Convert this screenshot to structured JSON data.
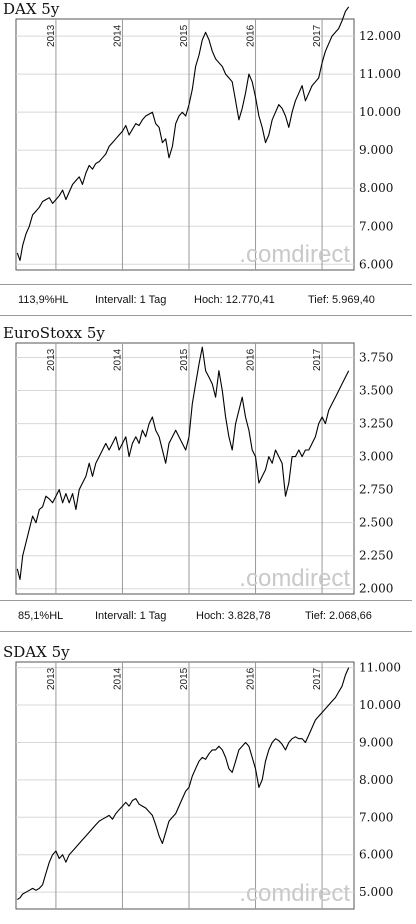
{
  "panels": [
    {
      "title": "DAX 5y",
      "watermark": ".comdirect",
      "stats": {
        "hl": "113,9%HL",
        "interval": "Intervall: 1 Tag",
        "high": "Hoch:  12.770,41",
        "low": "Tief:   5.969,40"
      }
    },
    {
      "title": "EuroStoxx 5y",
      "watermark": ".comdirect",
      "stats": {
        "hl": "85,1%HL",
        "interval": "Intervall: 1 Tag",
        "high": "Hoch:  3.828,78",
        "low": "Tief:  2.068,66"
      }
    },
    {
      "title": "SDAX 5y",
      "watermark": ".comdirect"
    }
  ],
  "chart_data": [
    {
      "type": "line",
      "title": "DAX 5y",
      "x_tick_labels": [
        "2013",
        "2014",
        "2015",
        "2016",
        "2017"
      ],
      "y_tick_labels": [
        "6.000",
        "7.000",
        "8.000",
        "9.000",
        "10.000",
        "11.000",
        "12.000"
      ],
      "ylim": [
        5800,
        12900
      ],
      "grid": true,
      "series": [
        {
          "color": "#000000",
          "x": [
            2012.42,
            2012.46,
            2012.5,
            2012.55,
            2012.6,
            2012.65,
            2012.7,
            2012.75,
            2012.8,
            2012.85,
            2012.9,
            2012.95,
            2013.0,
            2013.05,
            2013.1,
            2013.15,
            2013.2,
            2013.25,
            2013.3,
            2013.35,
            2013.4,
            2013.45,
            2013.5,
            2013.55,
            2013.6,
            2013.65,
            2013.7,
            2013.75,
            2013.8,
            2013.85,
            2013.9,
            2013.95,
            2014.0,
            2014.05,
            2014.1,
            2014.15,
            2014.2,
            2014.25,
            2014.3,
            2014.35,
            2014.4,
            2014.45,
            2014.5,
            2014.55,
            2014.6,
            2014.65,
            2014.7,
            2014.75,
            2014.8,
            2014.85,
            2014.9,
            2014.95,
            2015.0,
            2015.05,
            2015.1,
            2015.15,
            2015.2,
            2015.25,
            2015.3,
            2015.35,
            2015.4,
            2015.45,
            2015.5,
            2015.55,
            2015.6,
            2015.65,
            2015.7,
            2015.75,
            2015.8,
            2015.85,
            2015.9,
            2015.95,
            2016.0,
            2016.05,
            2016.1,
            2016.15,
            2016.2,
            2016.25,
            2016.3,
            2016.35,
            2016.4,
            2016.45,
            2016.5,
            2016.55,
            2016.6,
            2016.65,
            2016.7,
            2016.75,
            2016.8,
            2016.85,
            2016.9,
            2016.95,
            2017.0,
            2017.05,
            2017.1,
            2017.15,
            2017.2,
            2017.25,
            2017.3,
            2017.35,
            2017.4
          ],
          "y": [
            6300,
            6100,
            6500,
            6800,
            7000,
            7300,
            7400,
            7500,
            7650,
            7700,
            7750,
            7600,
            7700,
            7800,
            7950,
            7700,
            7900,
            8100,
            8200,
            8300,
            8100,
            8400,
            8600,
            8500,
            8650,
            8700,
            8800,
            8900,
            9100,
            9200,
            9300,
            9400,
            9500,
            9650,
            9400,
            9550,
            9700,
            9650,
            9800,
            9900,
            9950,
            10000,
            9700,
            9600,
            9200,
            9300,
            8800,
            9100,
            9700,
            9900,
            10000,
            9900,
            10200,
            10600,
            11200,
            11500,
            11900,
            12100,
            11900,
            11600,
            11400,
            11300,
            11200,
            11000,
            10900,
            10800,
            10300,
            9800,
            10100,
            10500,
            11000,
            10800,
            10400,
            9900,
            9600,
            9200,
            9400,
            9800,
            10000,
            10200,
            10100,
            9900,
            9600,
            10000,
            10300,
            10500,
            10700,
            10300,
            10500,
            10700,
            10800,
            10900,
            11300,
            11600,
            11800,
            12000,
            12100,
            12200,
            12400,
            12650,
            12770
          ]
        }
      ]
    },
    {
      "type": "line",
      "title": "EuroStoxx 5y",
      "x_tick_labels": [
        "2013",
        "2014",
        "2015",
        "2016",
        "2017"
      ],
      "y_tick_labels": [
        "2.000",
        "2.250",
        "2.500",
        "2.750",
        "3.000",
        "3.250",
        "3.500",
        "3.750"
      ],
      "ylim": [
        1950,
        3900
      ],
      "grid": true,
      "series": [
        {
          "color": "#000000",
          "x": [
            2012.42,
            2012.46,
            2012.5,
            2012.55,
            2012.6,
            2012.65,
            2012.7,
            2012.75,
            2012.8,
            2012.85,
            2012.9,
            2012.95,
            2013.0,
            2013.05,
            2013.1,
            2013.15,
            2013.2,
            2013.25,
            2013.3,
            2013.35,
            2013.4,
            2013.45,
            2013.5,
            2013.55,
            2013.6,
            2013.65,
            2013.7,
            2013.75,
            2013.8,
            2013.85,
            2013.9,
            2013.95,
            2014.0,
            2014.05,
            2014.1,
            2014.15,
            2014.2,
            2014.25,
            2014.3,
            2014.35,
            2014.4,
            2014.45,
            2014.5,
            2014.55,
            2014.6,
            2014.65,
            2014.7,
            2014.75,
            2014.8,
            2014.85,
            2014.9,
            2014.95,
            2015.0,
            2015.05,
            2015.1,
            2015.15,
            2015.2,
            2015.25,
            2015.3,
            2015.35,
            2015.4,
            2015.45,
            2015.5,
            2015.55,
            2015.6,
            2015.65,
            2015.7,
            2015.75,
            2015.8,
            2015.85,
            2015.9,
            2015.95,
            2016.0,
            2016.05,
            2016.1,
            2016.15,
            2016.2,
            2016.25,
            2016.3,
            2016.35,
            2016.4,
            2016.45,
            2016.5,
            2016.55,
            2016.6,
            2016.65,
            2016.7,
            2016.75,
            2016.8,
            2016.85,
            2016.9,
            2016.95,
            2017.0,
            2017.05,
            2017.1,
            2017.15,
            2017.2,
            2017.25,
            2017.3,
            2017.35,
            2017.4
          ],
          "y": [
            2150,
            2070,
            2250,
            2350,
            2450,
            2550,
            2500,
            2600,
            2620,
            2700,
            2680,
            2650,
            2700,
            2750,
            2650,
            2720,
            2650,
            2720,
            2600,
            2750,
            2800,
            2850,
            2950,
            2850,
            2950,
            3000,
            3050,
            3100,
            3050,
            3100,
            3150,
            3050,
            3100,
            3150,
            3000,
            3100,
            3150,
            3100,
            3200,
            3150,
            3250,
            3300,
            3200,
            3150,
            3050,
            2950,
            3100,
            3150,
            3200,
            3150,
            3100,
            3050,
            3150,
            3400,
            3550,
            3700,
            3828,
            3650,
            3600,
            3550,
            3450,
            3650,
            3500,
            3300,
            3150,
            3050,
            3250,
            3350,
            3450,
            3300,
            3200,
            3050,
            3000,
            2800,
            2850,
            2900,
            3000,
            2950,
            3050,
            3000,
            2950,
            2700,
            2800,
            3000,
            3000,
            3050,
            3000,
            3050,
            3050,
            3100,
            3150,
            3250,
            3300,
            3250,
            3350,
            3400,
            3450,
            3500,
            3550,
            3600,
            3650
          ]
        }
      ]
    },
    {
      "type": "line",
      "title": "SDAX 5y",
      "x_tick_labels": [
        "2013",
        "2014",
        "2015",
        "2016",
        "2017"
      ],
      "y_tick_labels": [
        "5.000",
        "6.000",
        "7.000",
        "8.000",
        "9.000",
        "10.000",
        "11.000"
      ],
      "ylim": [
        4550,
        11150
      ],
      "grid": true,
      "series": [
        {
          "color": "#000000",
          "x": [
            2012.42,
            2012.46,
            2012.5,
            2012.55,
            2012.6,
            2012.65,
            2012.7,
            2012.75,
            2012.8,
            2012.85,
            2012.9,
            2012.95,
            2013.0,
            2013.05,
            2013.1,
            2013.15,
            2013.2,
            2013.25,
            2013.3,
            2013.35,
            2013.4,
            2013.45,
            2013.5,
            2013.55,
            2013.6,
            2013.65,
            2013.7,
            2013.75,
            2013.8,
            2013.85,
            2013.9,
            2013.95,
            2014.0,
            2014.05,
            2014.1,
            2014.15,
            2014.2,
            2014.25,
            2014.3,
            2014.35,
            2014.4,
            2014.45,
            2014.5,
            2014.55,
            2014.6,
            2014.65,
            2014.7,
            2014.75,
            2014.8,
            2014.85,
            2014.9,
            2014.95,
            2015.0,
            2015.05,
            2015.1,
            2015.15,
            2015.2,
            2015.25,
            2015.3,
            2015.35,
            2015.4,
            2015.45,
            2015.5,
            2015.55,
            2015.6,
            2015.65,
            2015.7,
            2015.75,
            2015.8,
            2015.85,
            2015.9,
            2015.95,
            2016.0,
            2016.05,
            2016.1,
            2016.15,
            2016.2,
            2016.25,
            2016.3,
            2016.35,
            2016.4,
            2016.45,
            2016.5,
            2016.55,
            2016.6,
            2016.65,
            2016.7,
            2016.75,
            2016.8,
            2016.85,
            2016.9,
            2016.95,
            2017.0,
            2017.05,
            2017.1,
            2017.15,
            2017.2,
            2017.25,
            2017.3,
            2017.35,
            2017.4
          ],
          "y": [
            4800,
            4850,
            4950,
            5000,
            5050,
            5100,
            5050,
            5100,
            5200,
            5500,
            5800,
            6000,
            6100,
            5900,
            6000,
            5800,
            6000,
            6100,
            6200,
            6300,
            6400,
            6500,
            6600,
            6700,
            6800,
            6900,
            6950,
            7000,
            7050,
            6950,
            7100,
            7200,
            7300,
            7400,
            7300,
            7450,
            7500,
            7350,
            7300,
            7250,
            7150,
            7050,
            6800,
            6500,
            6300,
            6600,
            6900,
            7000,
            7100,
            7300,
            7500,
            7700,
            7800,
            8100,
            8300,
            8500,
            8600,
            8550,
            8700,
            8800,
            8800,
            8900,
            8800,
            8600,
            8300,
            8200,
            8500,
            8800,
            8900,
            9000,
            8900,
            8600,
            8300,
            7800,
            8000,
            8500,
            8800,
            9000,
            9100,
            9050,
            8950,
            8800,
            9000,
            9100,
            9150,
            9100,
            9100,
            9000,
            9200,
            9400,
            9600,
            9700,
            9800,
            9900,
            10000,
            10100,
            10200,
            10350,
            10500,
            10800,
            11000
          ]
        }
      ]
    }
  ]
}
